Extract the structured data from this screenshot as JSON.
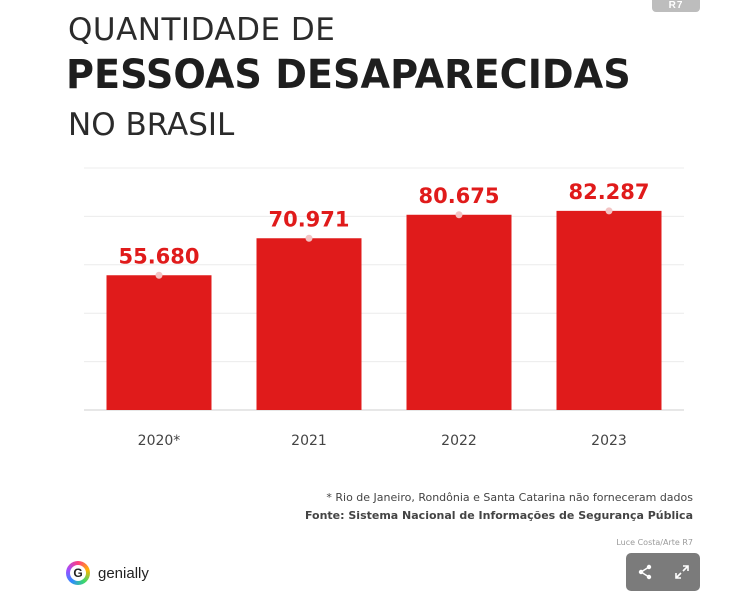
{
  "header": {
    "logo": "R7",
    "title_line1": "QUANTIDADE DE",
    "title_line2": "PESSOAS DESAPARECIDAS",
    "title_line3": "NO BRASIL"
  },
  "chart_data": {
    "type": "bar",
    "title": "QUANTIDADE DE PESSOAS DESAPARECIDAS NO BRASIL",
    "categories": [
      "2020*",
      "2021",
      "2022",
      "2023"
    ],
    "values": [
      55680,
      70971,
      80675,
      82287
    ],
    "value_labels": [
      "55.680",
      "70.971",
      "80.675",
      "82.287"
    ],
    "xlabel": "",
    "ylabel": "",
    "ylim": [
      0,
      100000
    ],
    "grid": true,
    "legend": "none",
    "bar_color": "#e01b1b",
    "label_color": "#e01b1b"
  },
  "notes": {
    "footnote": "* Rio de Janeiro, Rondônia e Santa Catarina não forneceram dados",
    "source": "Fonte: Sistema Nacional de Informações de Segurança Pública",
    "credit": "Luce Costa/Arte R7"
  },
  "brand": {
    "icon_letter": "G",
    "name": "genially"
  },
  "controls": {
    "share": "share-icon",
    "fullscreen": "expand-icon"
  }
}
